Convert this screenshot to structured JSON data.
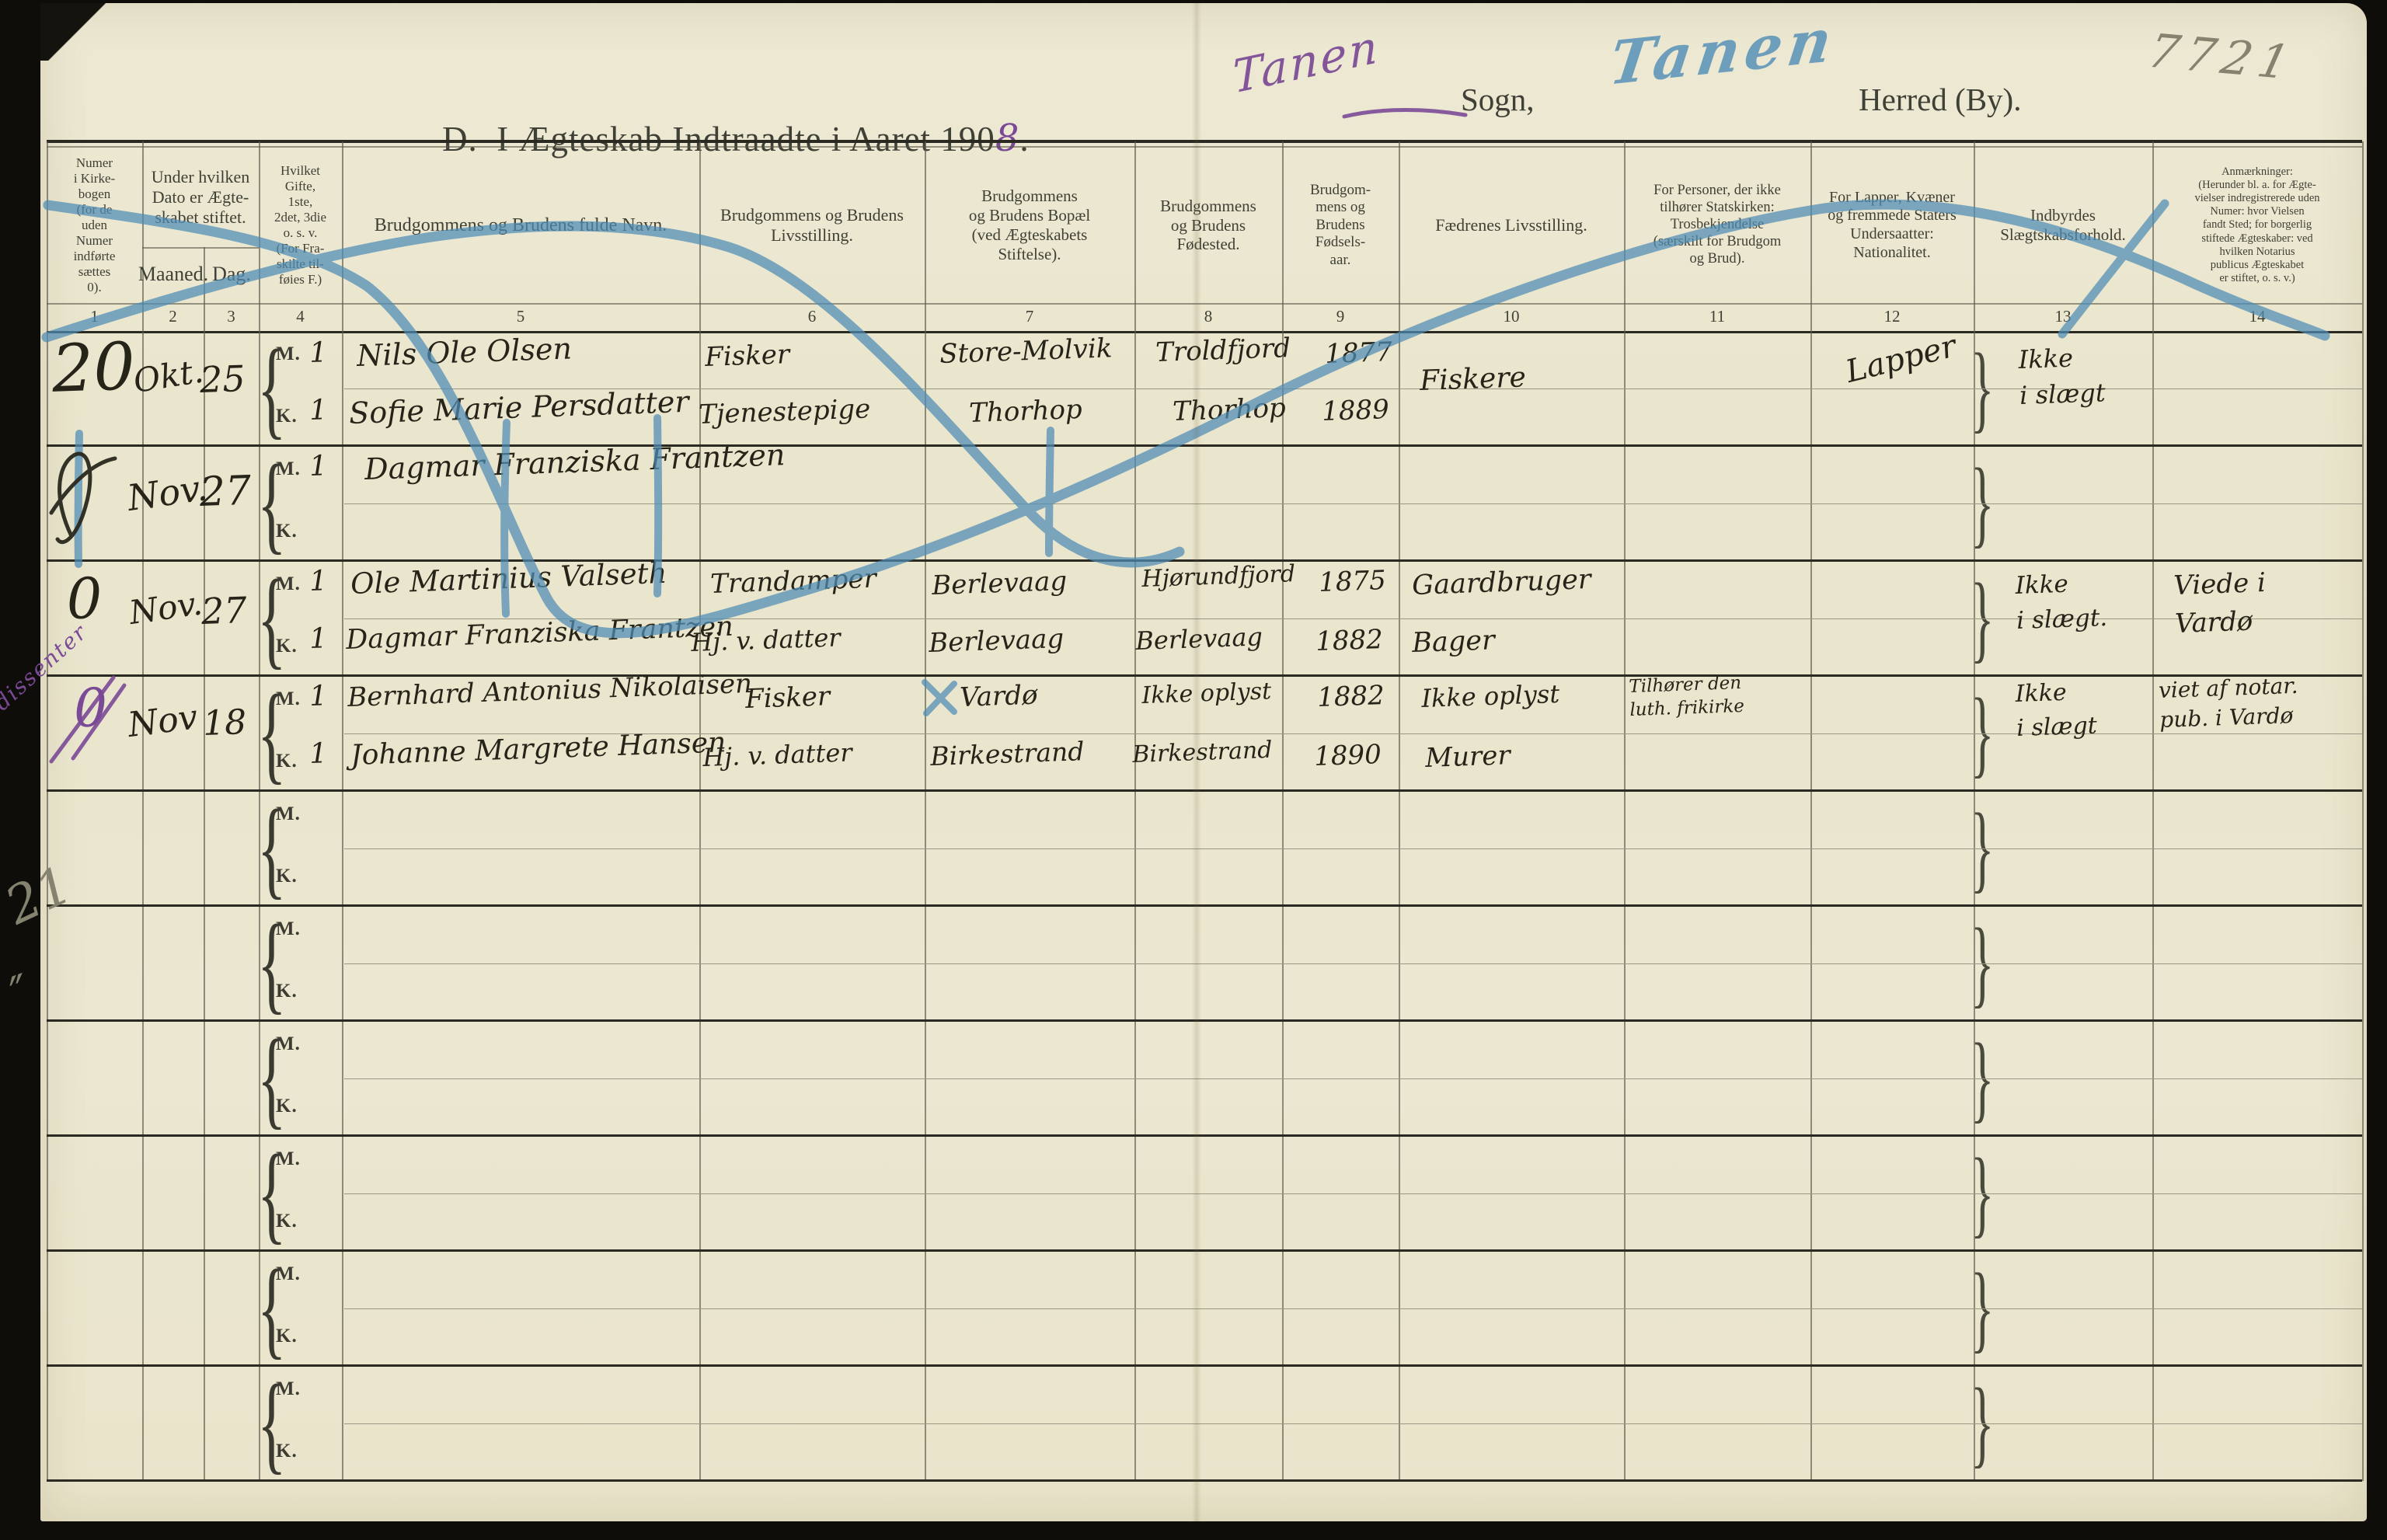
{
  "scan": {
    "corner_number": "7721",
    "margin_note": "dissenter",
    "margin_pencil_a": "21",
    "margin_pencil_b": "″"
  },
  "header": {
    "title_prefix": "D.  I Ægteskab Indtraadte i Aaret 190",
    "title_year_digit": "8",
    "title_period": ".",
    "sogn_handwritten": "Tanen",
    "sogn_label": "Sogn,",
    "herred_handwritten": "Tanen",
    "herred_label": "Herred (By)."
  },
  "table": {
    "group_date_header": "Under hvilken\nDato er Ægte-\nskabet stiftet.",
    "row_labels": {
      "m": "M.",
      "k": "K."
    },
    "columns": [
      {
        "num": "1",
        "title": "Numer\ni Kirke-\nbogen\n(for de\nuden\nNumer\nindførte\nsættes\n0)."
      },
      {
        "num": "2",
        "title": "Maaned."
      },
      {
        "num": "3",
        "title": "Dag."
      },
      {
        "num": "4",
        "title": "Hvilket\nGifte,\n1ste,\n2det, 3die\no. s. v.\n(For Fra-\nskilte til-\nføies F.)"
      },
      {
        "num": "5",
        "title": "Brudgommens og Brudens fulde Navn."
      },
      {
        "num": "6",
        "title": "Brudgommens og Brudens\nLivsstilling."
      },
      {
        "num": "7",
        "title": "Brudgommens\nog Brudens Bopæl\n(ved Ægteskabets\nStiftelse)."
      },
      {
        "num": "8",
        "title": "Brudgommens\nog Brudens\nFødested."
      },
      {
        "num": "9",
        "title": "Brudgom-\nmens og\nBrudens\nFødsels-\naar."
      },
      {
        "num": "10",
        "title": "Fædrenes Livsstilling."
      },
      {
        "num": "11",
        "title": "For Personer, der ikke\ntilhører Statskirken:\nTrosbekjendelse\n(særskilt for Brudgom\nog Brud)."
      },
      {
        "num": "12",
        "title": "For Lapper, Kvæner\nog fremmede Staters\nUndersaatter:\nNationalitet."
      },
      {
        "num": "13",
        "title": "Indbyrdes\nSlægtskabsforhold."
      },
      {
        "num": "14",
        "title": "Anmærkninger:\n(Herunder bl. a. for Ægte-\nvielser indregistrerede uden\nNumer: hvor Vielsen\nfandt Sted; for borgerlig\nstiftede Ægteskaber: ved\nhvilken Notarius\npublicus Ægteskabet\ner stiftet, o. s. v.)"
      }
    ]
  },
  "entries": [
    {
      "number": "20",
      "month": "Okt.",
      "day": "25",
      "m_gifte": "1",
      "k_gifte": "1",
      "m": {
        "name": "Nils Ole Olsen",
        "occupation": "Fisker",
        "residence": "Store-Molvik",
        "birthplace": "Troldfjord",
        "birth_year": "1877"
      },
      "k": {
        "name": "Sofie Marie Persdatter",
        "occupation": "Tjenestepige",
        "residence": "Thorhop",
        "birthplace": "Thorhop",
        "birth_year": "1889"
      },
      "fathers_occupation": "Fiskere",
      "nationality": "Lapper",
      "kinship": "Ikke\ni slægt"
    },
    {
      "month": "Nov.",
      "day": "27",
      "m_gifte": "1",
      "m": {
        "name": "Dagmar Franziska Frantzen"
      }
    },
    {
      "number": "0",
      "month": "Nov.",
      "day": "27",
      "m_gifte": "1",
      "k_gifte": "1",
      "m": {
        "name": "Ole Martinius Valseth",
        "occupation": "Trandamper",
        "residence": "Berlevaag",
        "birthplace": "Hjørundfjord",
        "birth_year": "1875",
        "fathers_occupation": "Gaardbruger"
      },
      "k": {
        "name": "Dagmar Franziska Frantzen",
        "occupation": "Hj. v. datter",
        "residence": "Berlevaag",
        "birthplace": "Berlevaag",
        "birth_year": "1882",
        "fathers_occupation": "Bager"
      },
      "kinship": "Ikke\ni slægt.",
      "remarks": "Viede i\nVardø"
    },
    {
      "number": "0",
      "month": "Nov",
      "day": "18",
      "m_gifte": "1",
      "k_gifte": "1",
      "m": {
        "name": "Bernhard Antonius Nikolaisen",
        "occupation": "Fisker",
        "residence": "Vardø",
        "birthplace": "Ikke oplyst",
        "birth_year": "1882",
        "fathers_occupation": "Ikke oplyst",
        "creed": "Tilhører den\nluth. frikirke"
      },
      "k": {
        "name": "Johanne Margrete Hansen",
        "occupation": "Hj. v. datter",
        "residence": "Birkestrand",
        "birthplace": "Birkestrand",
        "birth_year": "1890",
        "fathers_occupation": "Murer"
      },
      "kinship": "Ikke\ni slægt",
      "remarks": "viet af notar.\npub. i Vardø"
    }
  ]
}
